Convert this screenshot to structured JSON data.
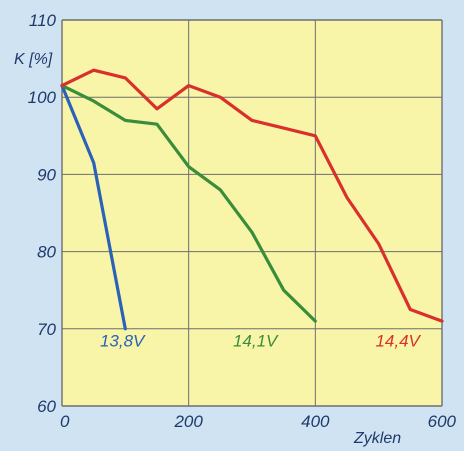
{
  "chart_data": {
    "type": "line",
    "title": "",
    "xlabel": "Zyklen",
    "ylabel": "K [%]",
    "xlim": [
      0,
      600
    ],
    "ylim": [
      60,
      110
    ],
    "x_ticks": [
      0,
      200,
      400,
      600
    ],
    "y_ticks": [
      60,
      70,
      80,
      90,
      100,
      110
    ],
    "grid": true,
    "colors": {
      "plot_background": "#f8f5a9",
      "page_background": "#cfe3f2",
      "grid": "#6e6e6e",
      "axis_text": "#1f3a6b"
    },
    "series": [
      {
        "name": "13,8V",
        "color": "#2b61b7",
        "x": [
          0,
          50,
          100
        ],
        "y": [
          101.5,
          91.5,
          70
        ]
      },
      {
        "name": "14,1V",
        "color": "#3a8d3a",
        "x": [
          0,
          50,
          100,
          150,
          200,
          250,
          300,
          350,
          400
        ],
        "y": [
          101.5,
          99.5,
          97,
          96.5,
          91,
          88,
          82.5,
          75,
          71
        ]
      },
      {
        "name": "14,4V",
        "color": "#d9302b",
        "x": [
          0,
          50,
          100,
          150,
          200,
          250,
          300,
          350,
          400,
          450,
          500,
          550,
          600
        ],
        "y": [
          101.5,
          103.5,
          102.5,
          98.5,
          101.5,
          100,
          97,
          96,
          95,
          87,
          81,
          72.5,
          71
        ]
      }
    ],
    "series_label_positions": [
      {
        "series": "13,8V",
        "x": 95,
        "y": 68.5
      },
      {
        "series": "14,1V",
        "x": 305,
        "y": 68.5
      },
      {
        "series": "14,4V",
        "x": 530,
        "y": 68.5
      }
    ]
  }
}
